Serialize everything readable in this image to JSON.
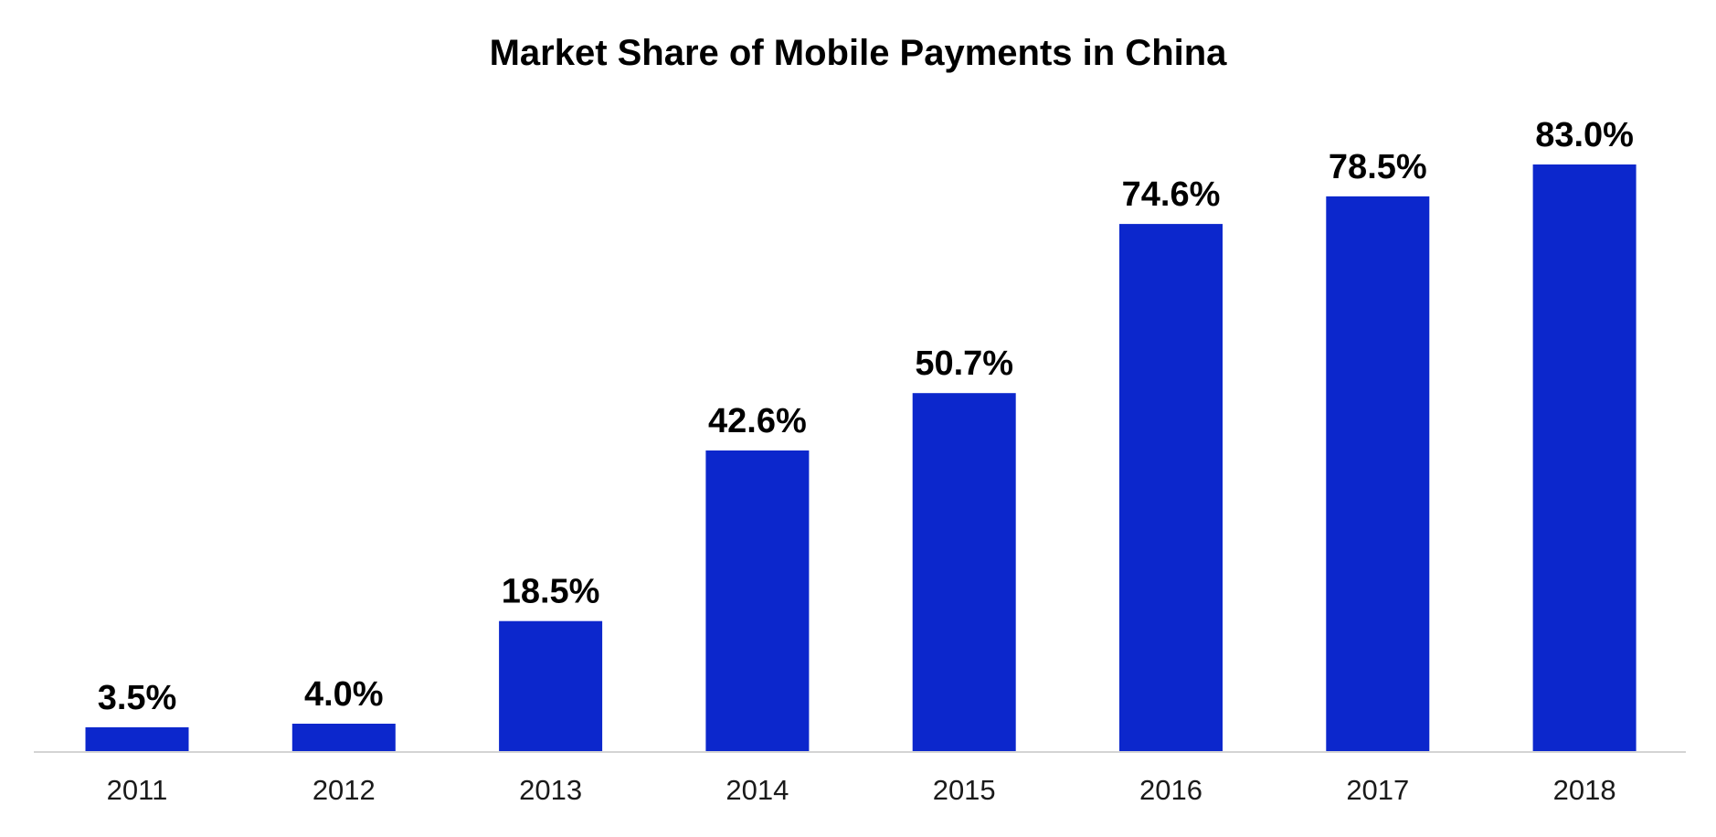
{
  "chart_data": {
    "type": "bar",
    "title": "Market Share of Mobile Payments in China",
    "categories": [
      "2011",
      "2012",
      "2013",
      "2014",
      "2015",
      "2016",
      "2017",
      "2018"
    ],
    "values": [
      3.5,
      4.0,
      18.5,
      42.6,
      50.7,
      74.6,
      78.5,
      83.0
    ],
    "data_labels": [
      "3.5%",
      "4.0%",
      "18.5%",
      "42.6%",
      "50.7%",
      "74.6%",
      "78.5%",
      "83.0%"
    ],
    "xlabel": "",
    "ylabel": "",
    "ylim": [
      0,
      83
    ],
    "grid": false,
    "legend": "none",
    "bar_color": "#0c27cc",
    "axis_color": "#d4d4d4"
  }
}
